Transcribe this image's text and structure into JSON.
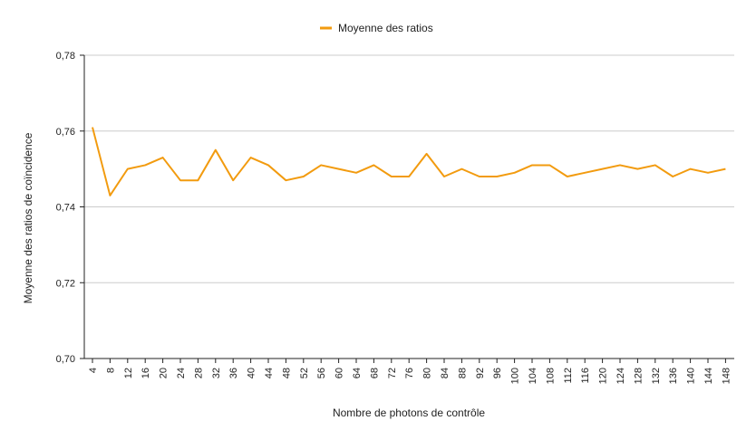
{
  "chart_data": {
    "type": "line",
    "title": "",
    "xlabel": "Nombre de photons de contrôle",
    "ylabel": "Moyenne des ratios de coïncidence",
    "legend_position": "top-center",
    "grid": true,
    "ylim": [
      0.7,
      0.78
    ],
    "yticks": [
      "0,70",
      "0,72",
      "0,74",
      "0,76",
      "0,78"
    ],
    "x": [
      "4",
      "8",
      "12",
      "16",
      "20",
      "24",
      "28",
      "32",
      "36",
      "40",
      "44",
      "48",
      "52",
      "56",
      "60",
      "64",
      "68",
      "72",
      "76",
      "80",
      "84",
      "88",
      "92",
      "96",
      "100",
      "104",
      "108",
      "112",
      "116",
      "120",
      "124",
      "128",
      "132",
      "136",
      "140",
      "144",
      "148"
    ],
    "series": [
      {
        "name": "Moyenne des ratios",
        "color": "#f29b0f",
        "values": [
          0.761,
          0.743,
          0.75,
          0.751,
          0.753,
          0.747,
          0.747,
          0.755,
          0.747,
          0.753,
          0.751,
          0.747,
          0.748,
          0.751,
          0.75,
          0.749,
          0.751,
          0.748,
          0.748,
          0.754,
          0.748,
          0.75,
          0.748,
          0.748,
          0.749,
          0.751,
          0.751,
          0.748,
          0.749,
          0.75,
          0.751,
          0.75,
          0.751,
          0.748,
          0.75,
          0.749,
          0.75
        ]
      }
    ]
  }
}
